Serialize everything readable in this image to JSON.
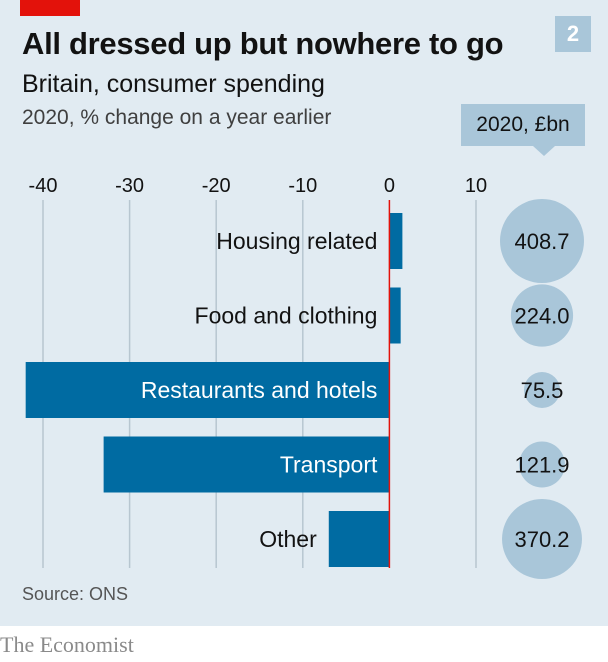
{
  "badge": "2",
  "logo_text": "The Economist",
  "source": "Source: ONS",
  "bubble_header": "2020, £bn",
  "colors": {
    "bar": "#006ba2",
    "bubble": "#a9c6d9",
    "zero_line": "#e3120b",
    "grid": "#b7c6d0",
    "background": "#e1ebf2",
    "brand_red": "#e3120b"
  },
  "chart_data": {
    "type": "bar",
    "orientation": "horizontal",
    "title": "All dressed up but nowhere to go",
    "subtitle": "Britain, consumer spending",
    "unit_note": "2020, % change on a year earlier",
    "xlim": [
      -40,
      10
    ],
    "x_ticks": [
      "-40",
      "-30",
      "-20",
      "-10",
      "0",
      "10"
    ],
    "x_tick_values": [
      -40,
      -30,
      -20,
      -10,
      0,
      10
    ],
    "grid": true,
    "categories": [
      "Housing related",
      "Food and clothing",
      "Restaurants and hotels",
      "Transport",
      "Other"
    ],
    "values": [
      1.5,
      1.3,
      -42,
      -33,
      -7
    ],
    "bubble_values": [
      408.7,
      224.0,
      75.5,
      121.9,
      370.2
    ],
    "bubble_labels": [
      "408.7",
      "224.0",
      "75.5",
      "121.9",
      "370.2"
    ]
  }
}
